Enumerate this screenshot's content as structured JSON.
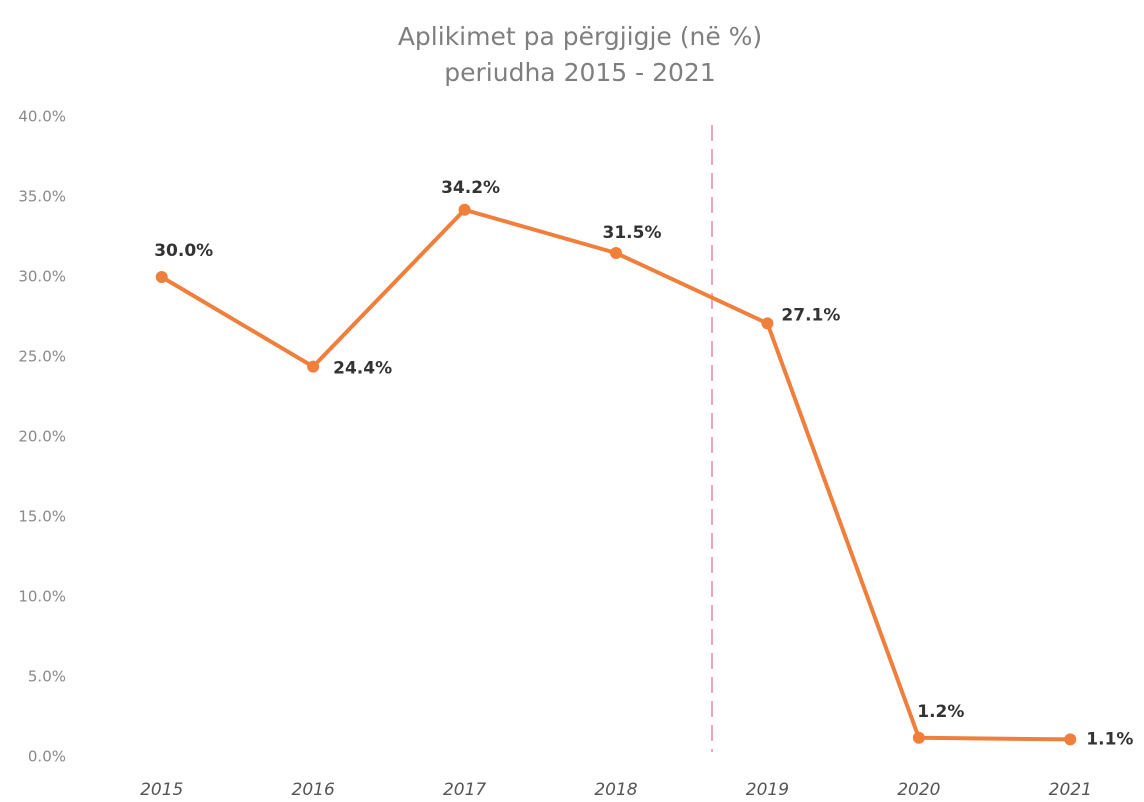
{
  "chart_data": {
    "type": "line",
    "title": "Aplikimet pa përgjigje (në %)",
    "subtitle": "periudha 2015 -  2021",
    "categories": [
      "2015",
      "2016",
      "2017",
      "2018",
      "2019",
      "2020",
      "2021"
    ],
    "series": [
      {
        "color": "#f07f3c",
        "values": [
          30.0,
          24.4,
          34.2,
          31.5,
          27.1,
          1.2,
          1.1
        ],
        "value_labels": [
          "30.0%",
          "24.4%",
          "34.2%",
          "31.5%",
          "27.1%",
          "1.2%",
          "1.1%"
        ]
      }
    ],
    "ylim": [
      0,
      40
    ],
    "yticks": [
      {
        "value": 0,
        "label": "0.0%"
      },
      {
        "value": 5,
        "label": "5.0%"
      },
      {
        "value": 10,
        "label": "10.0%"
      },
      {
        "value": 15,
        "label": "15.0%"
      },
      {
        "value": 20,
        "label": "20.0%"
      },
      {
        "value": 25,
        "label": "25.0%"
      },
      {
        "value": 30,
        "label": "30.0%"
      },
      {
        "value": 35,
        "label": "35.0%"
      },
      {
        "value": 40,
        "label": "40.0%"
      }
    ],
    "grid": false
  }
}
